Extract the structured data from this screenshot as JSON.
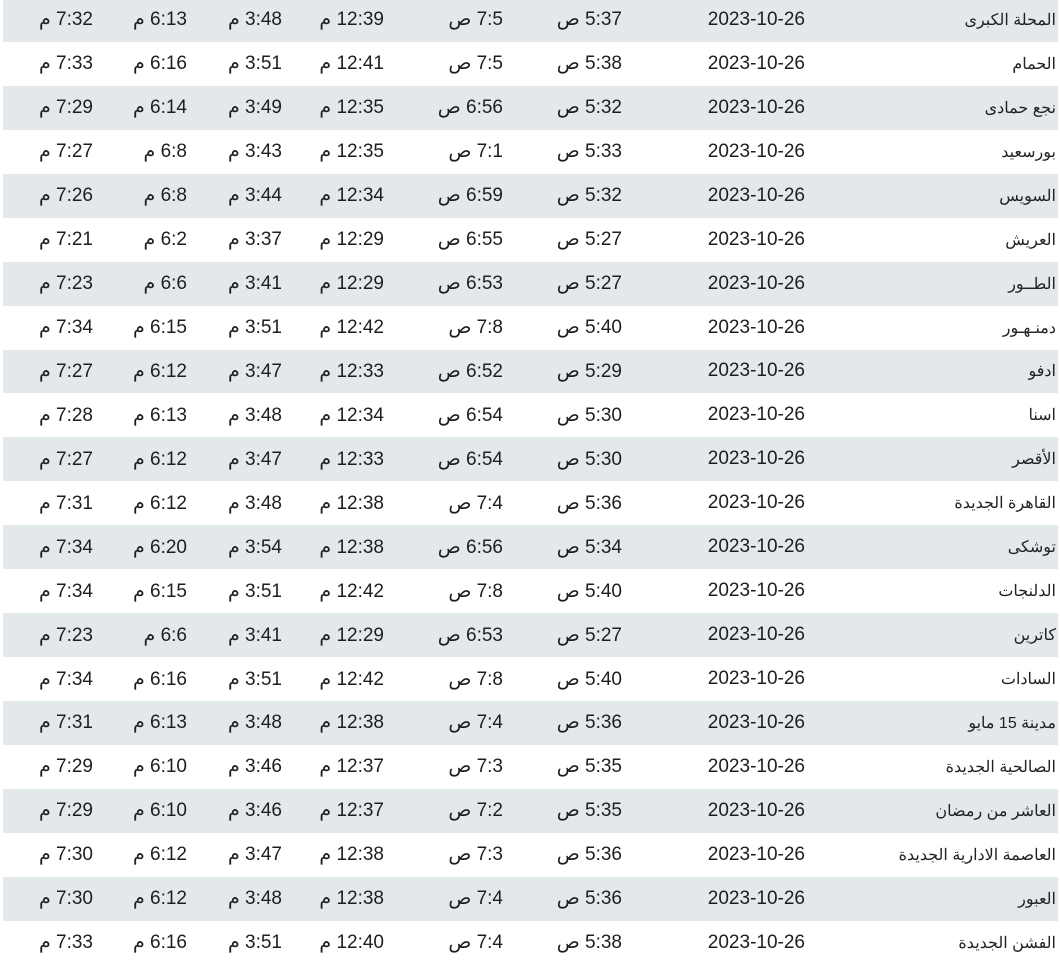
{
  "colors": {
    "shaded_row": "#e3e8eb",
    "row": "#ffffff",
    "text": "#1e1e1e"
  },
  "rows": [
    {
      "city": "المحلة الكبرى",
      "date": "2023-10-26",
      "fajr": "5:37 ص",
      "sunrise": "7:5 ص",
      "dhuhr": "12:39 م",
      "asr": "3:48 م",
      "maghrib": "6:13 م",
      "isha": "7:32 م"
    },
    {
      "city": "الحمام",
      "date": "2023-10-26",
      "fajr": "5:38 ص",
      "sunrise": "7:5 ص",
      "dhuhr": "12:41 م",
      "asr": "3:51 م",
      "maghrib": "6:16 م",
      "isha": "7:33 م"
    },
    {
      "city": "نجع حمادى",
      "date": "2023-10-26",
      "fajr": "5:32 ص",
      "sunrise": "6:56 ص",
      "dhuhr": "12:35 م",
      "asr": "3:49 م",
      "maghrib": "6:14 م",
      "isha": "7:29 م"
    },
    {
      "city": "بورسعيد",
      "date": "2023-10-26",
      "fajr": "5:33 ص",
      "sunrise": "7:1 ص",
      "dhuhr": "12:35 م",
      "asr": "3:43 م",
      "maghrib": "6:8 م",
      "isha": "7:27 م"
    },
    {
      "city": "السويس",
      "date": "2023-10-26",
      "fajr": "5:32 ص",
      "sunrise": "6:59 ص",
      "dhuhr": "12:34 م",
      "asr": "3:44 م",
      "maghrib": "6:8 م",
      "isha": "7:26 م"
    },
    {
      "city": "العريش",
      "date": "2023-10-26",
      "fajr": "5:27 ص",
      "sunrise": "6:55 ص",
      "dhuhr": "12:29 م",
      "asr": "3:37 م",
      "maghrib": "6:2 م",
      "isha": "7:21 م"
    },
    {
      "city": "الطــور",
      "date": "2023-10-26",
      "fajr": "5:27 ص",
      "sunrise": "6:53 ص",
      "dhuhr": "12:29 م",
      "asr": "3:41 م",
      "maghrib": "6:6 م",
      "isha": "7:23 م"
    },
    {
      "city": "دمنـهـور",
      "date": "2023-10-26",
      "fajr": "5:40 ص",
      "sunrise": "7:8 ص",
      "dhuhr": "12:42 م",
      "asr": "3:51 م",
      "maghrib": "6:15 م",
      "isha": "7:34 م"
    },
    {
      "city": "ادفو",
      "date": "2023-10-26",
      "fajr": "5:29 ص",
      "sunrise": "6:52 ص",
      "dhuhr": "12:33 م",
      "asr": "3:47 م",
      "maghrib": "6:12 م",
      "isha": "7:27 م"
    },
    {
      "city": "اسنا",
      "date": "2023-10-26",
      "fajr": "5:30 ص",
      "sunrise": "6:54 ص",
      "dhuhr": "12:34 م",
      "asr": "3:48 م",
      "maghrib": "6:13 م",
      "isha": "7:28 م"
    },
    {
      "city": "الأقصر",
      "date": "2023-10-26",
      "fajr": "5:30 ص",
      "sunrise": "6:54 ص",
      "dhuhr": "12:33 م",
      "asr": "3:47 م",
      "maghrib": "6:12 م",
      "isha": "7:27 م"
    },
    {
      "city": "القاهرة الجديدة",
      "date": "2023-10-26",
      "fajr": "5:36 ص",
      "sunrise": "7:4 ص",
      "dhuhr": "12:38 م",
      "asr": "3:48 م",
      "maghrib": "6:12 م",
      "isha": "7:31 م"
    },
    {
      "city": "توشكى",
      "date": "2023-10-26",
      "fajr": "5:34 ص",
      "sunrise": "6:56 ص",
      "dhuhr": "12:38 م",
      "asr": "3:54 م",
      "maghrib": "6:20 م",
      "isha": "7:34 م"
    },
    {
      "city": "الدلنجات",
      "date": "2023-10-26",
      "fajr": "5:40 ص",
      "sunrise": "7:8 ص",
      "dhuhr": "12:42 م",
      "asr": "3:51 م",
      "maghrib": "6:15 م",
      "isha": "7:34 م"
    },
    {
      "city": "كاترين",
      "date": "2023-10-26",
      "fajr": "5:27 ص",
      "sunrise": "6:53 ص",
      "dhuhr": "12:29 م",
      "asr": "3:41 م",
      "maghrib": "6:6 م",
      "isha": "7:23 م"
    },
    {
      "city": "السادات",
      "date": "2023-10-26",
      "fajr": "5:40 ص",
      "sunrise": "7:8 ص",
      "dhuhr": "12:42 م",
      "asr": "3:51 م",
      "maghrib": "6:16 م",
      "isha": "7:34 م"
    },
    {
      "city": "مدينة 15 مايو",
      "date": "2023-10-26",
      "fajr": "5:36 ص",
      "sunrise": "7:4 ص",
      "dhuhr": "12:38 م",
      "asr": "3:48 م",
      "maghrib": "6:13 م",
      "isha": "7:31 م"
    },
    {
      "city": "الصالحية الجديدة",
      "date": "2023-10-26",
      "fajr": "5:35 ص",
      "sunrise": "7:3 ص",
      "dhuhr": "12:37 م",
      "asr": "3:46 م",
      "maghrib": "6:10 م",
      "isha": "7:29 م"
    },
    {
      "city": "العاشر من رمضان",
      "date": "2023-10-26",
      "fajr": "5:35 ص",
      "sunrise": "7:2 ص",
      "dhuhr": "12:37 م",
      "asr": "3:46 م",
      "maghrib": "6:10 م",
      "isha": "7:29 م"
    },
    {
      "city": "العاصمة الادارية الجديدة",
      "date": "2023-10-26",
      "fajr": "5:36 ص",
      "sunrise": "7:3 ص",
      "dhuhr": "12:38 م",
      "asr": "3:47 م",
      "maghrib": "6:12 م",
      "isha": "7:30 م"
    },
    {
      "city": "العبور",
      "date": "2023-10-26",
      "fajr": "5:36 ص",
      "sunrise": "7:4 ص",
      "dhuhr": "12:38 م",
      "asr": "3:48 م",
      "maghrib": "6:12 م",
      "isha": "7:30 م"
    },
    {
      "city": "الفشن الجديدة",
      "date": "2023-10-26",
      "fajr": "5:38 ص",
      "sunrise": "7:4 ص",
      "dhuhr": "12:40 م",
      "asr": "3:51 م",
      "maghrib": "6:16 م",
      "isha": "7:33 م"
    }
  ]
}
